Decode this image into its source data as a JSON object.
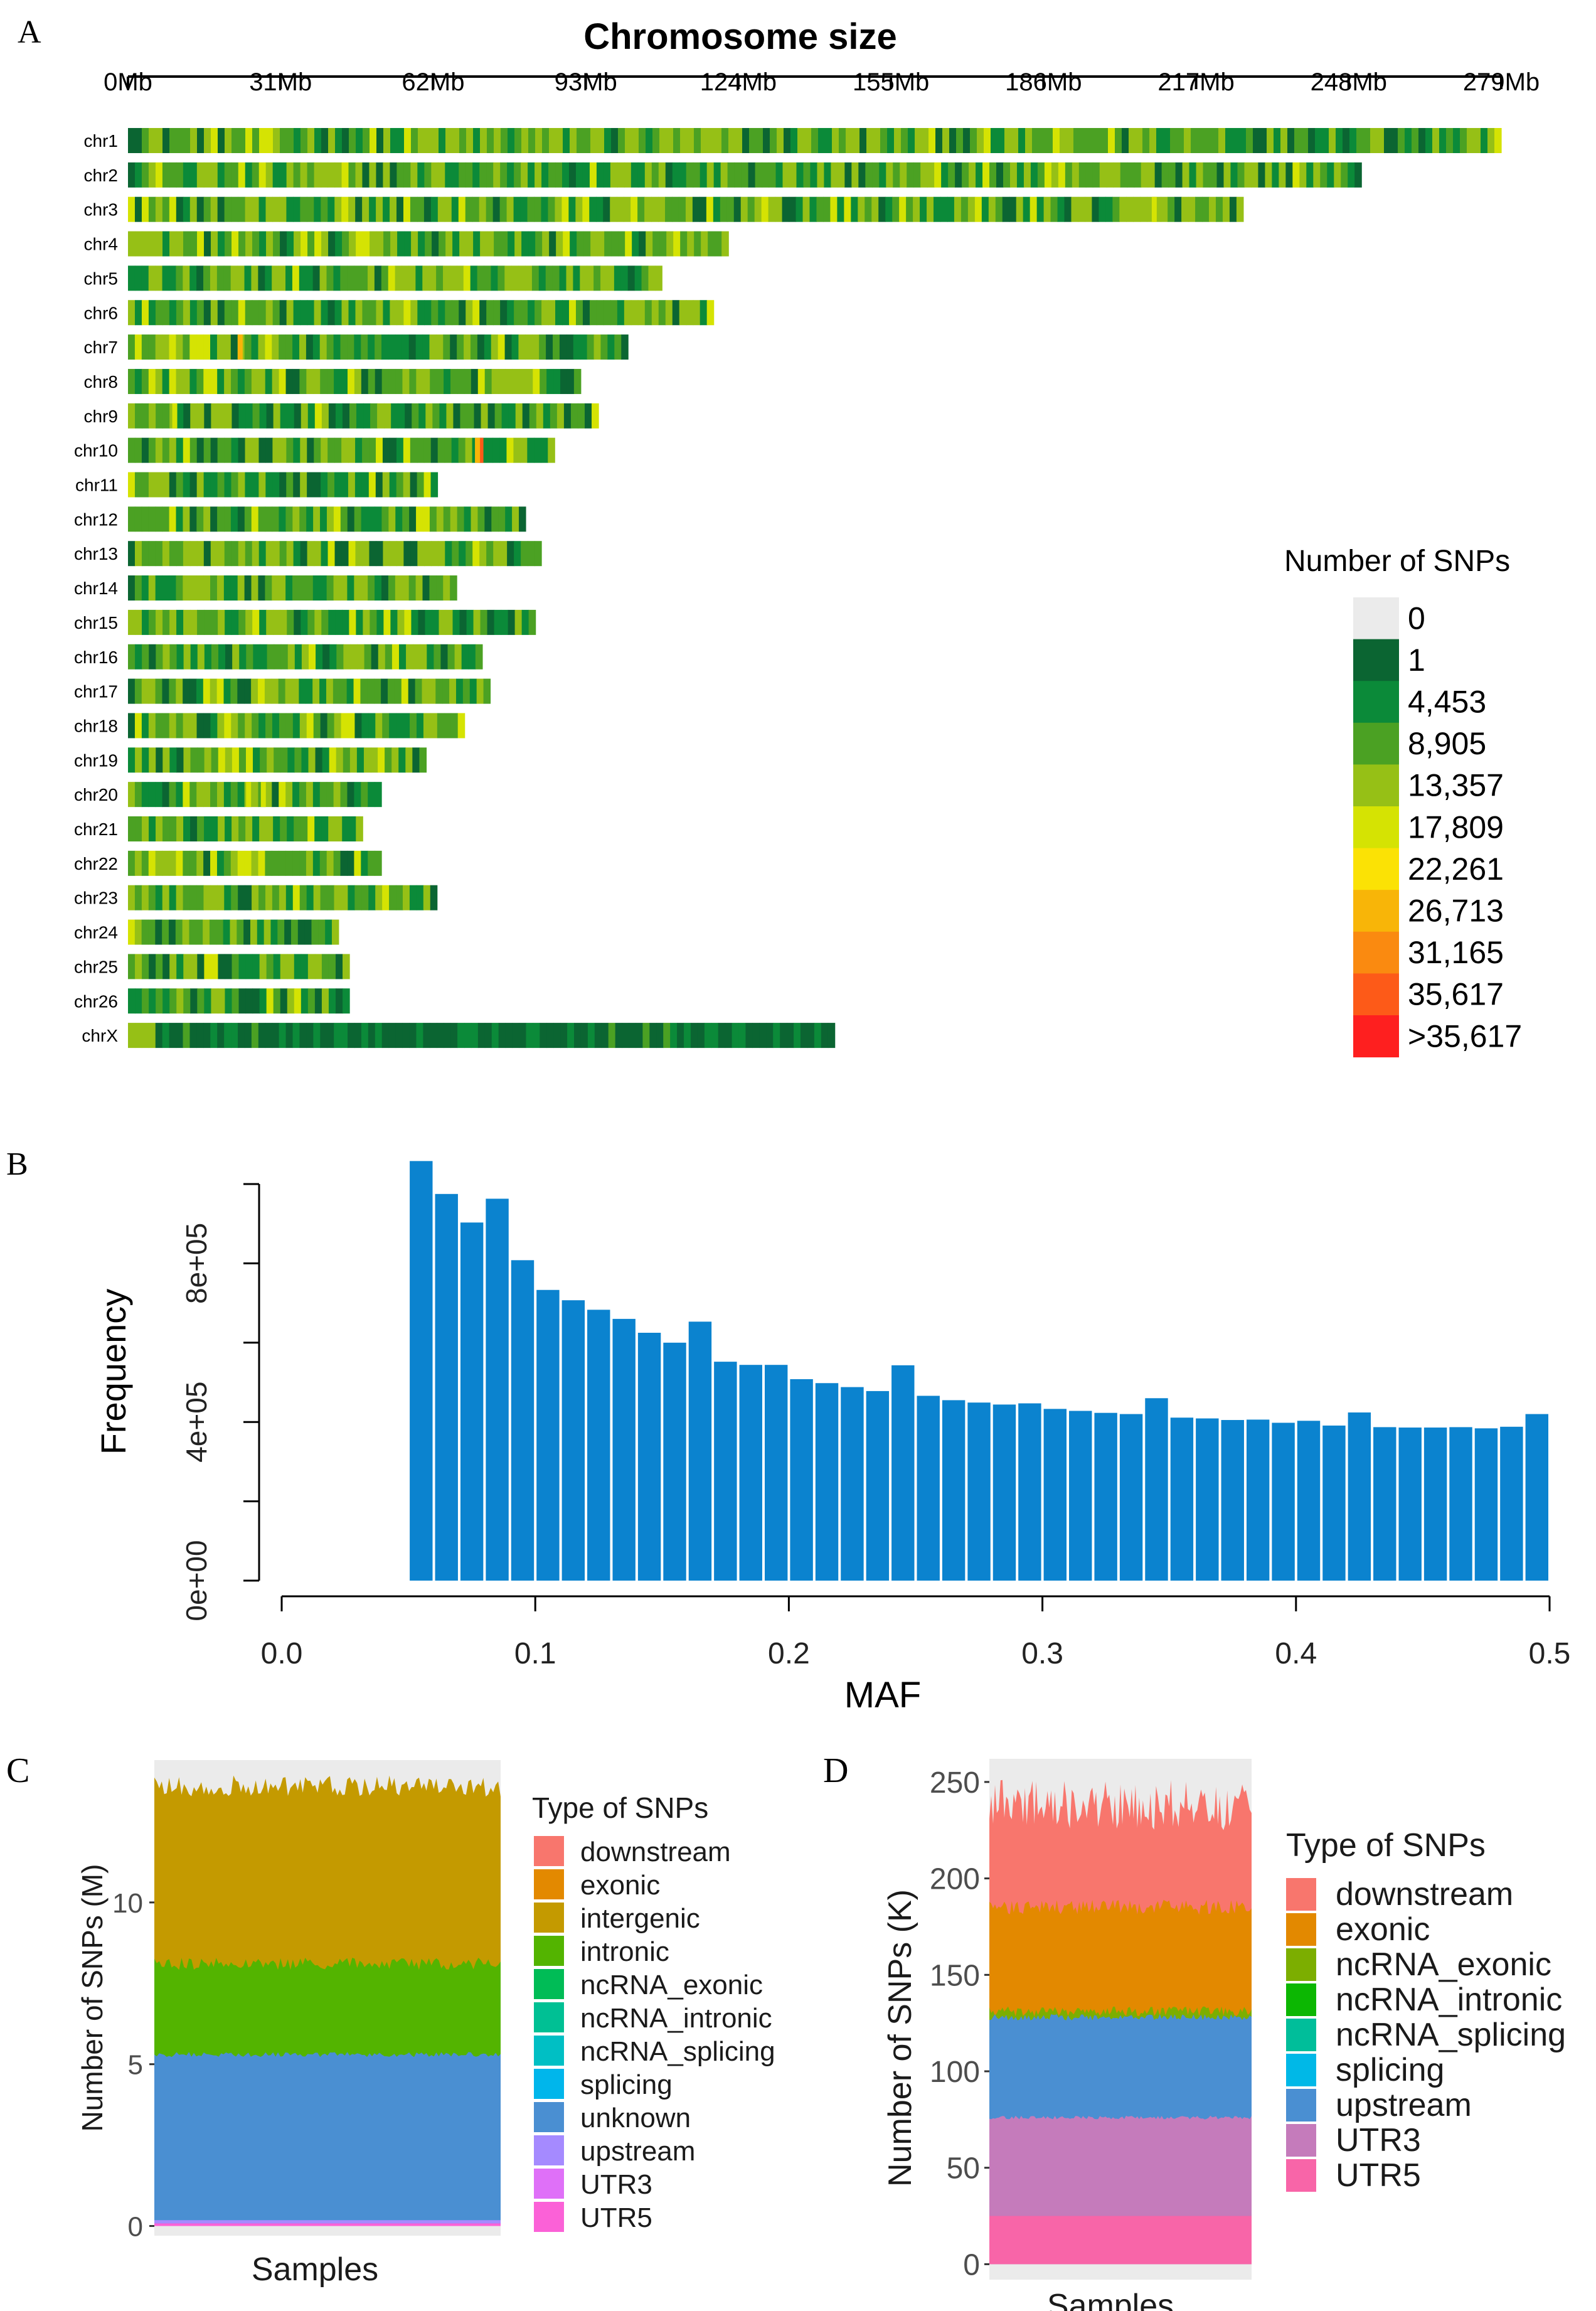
{
  "panels": {
    "a": "A",
    "b": "B",
    "c": "C",
    "d": "D"
  },
  "colors": {
    "heat": [
      "#ebebeb",
      "#0b6532",
      "#0b8a39",
      "#4ba123",
      "#96c016",
      "#d5e303",
      "#fbe205",
      "#f8b508",
      "#fa8a10",
      "#fd5a18",
      "#fe1f1f"
    ],
    "maf_bar": "#0b83cf",
    "panel_bg": "#ebebeb",
    "snp_types": {
      "downstream": "#f8766d",
      "exonic": "#e38900",
      "intergenic": "#c49a00",
      "intronic": "#53b400",
      "ncRNA_exonic": "#00bc56",
      "ncRNA_intronic": "#00c094",
      "ncRNA_splicing": "#00bfc4",
      "splicing": "#00b6eb",
      "unknown": "#4a8fd2",
      "upstream": "#a58aff",
      "UTR3": "#df70f8",
      "UTR5": "#fb61d7",
      "d_ncRNA_exonic": "#7cae00",
      "d_ncRNA_intronic": "#0cb702",
      "d_ncRNA_splicing": "#00be9a",
      "d_splicing": "#00b8e7",
      "d_upstream": "#4a8fd2",
      "d_UTR3": "#c57bbb",
      "d_UTR5": "#f865a8"
    }
  },
  "chart_data": [
    {
      "id": "chromosome-size",
      "type": "heatmap",
      "title": "Chromosome size",
      "x_unit": "Mb",
      "xlim": [
        0,
        279
      ],
      "x_ticks": [
        "0Mb",
        "31Mb",
        "62Mb",
        "93Mb",
        "124Mb",
        "155Mb",
        "186Mb",
        "217Mb",
        "248Mb",
        "279Mb"
      ],
      "chromosomes": [
        "chr1",
        "chr2",
        "chr3",
        "chr4",
        "chr5",
        "chr6",
        "chr7",
        "chr8",
        "chr9",
        "chr10",
        "chr11",
        "chr12",
        "chr13",
        "chr14",
        "chr15",
        "chr16",
        "chr17",
        "chr18",
        "chr19",
        "chr20",
        "chr21",
        "chr22",
        "chr23",
        "chr24",
        "chr25",
        "chr26",
        "chrX"
      ],
      "lengths_mb": [
        279.0,
        250.6,
        226.6,
        122.0,
        108.5,
        119.0,
        101.6,
        92.0,
        95.6,
        86.7,
        62.9,
        80.8,
        84.0,
        66.8,
        82.8,
        72.0,
        73.6,
        68.4,
        60.6,
        51.5,
        47.7,
        51.5,
        62.8,
        42.8,
        45.0,
        45.0,
        143.6
      ],
      "legend": {
        "title": "Number of SNPs",
        "labels": [
          "0",
          "1",
          "4,453",
          "8,905",
          "13,357",
          "17,809",
          "22,261",
          "26,713",
          "31,165",
          "35,617",
          ">35,617"
        ]
      },
      "hotspots": [
        {
          "chrom": "chr3",
          "pos_mb": 208.5,
          "level": 5
        },
        {
          "chrom": "chr7",
          "pos_mb": 22.8,
          "level": 7
        },
        {
          "chrom": "chr10",
          "pos_mb": 71.7,
          "level": 9
        },
        {
          "chrom": "chr10",
          "pos_mb": 71.0,
          "level": 7
        },
        {
          "chrom": "chr20",
          "pos_mb": 24.5,
          "level": 5
        },
        {
          "chrom": "chr20",
          "pos_mb": 27.5,
          "level": 5
        },
        {
          "chrom": "chr9",
          "pos_mb": 9.5,
          "level": 5
        }
      ]
    },
    {
      "id": "maf-histogram",
      "type": "bar",
      "xlabel": "MAF",
      "ylabel": "Frequency",
      "xlim": [
        0.0,
        0.5
      ],
      "ylim": [
        0,
        1000000
      ],
      "x_ticks": [
        "0.0",
        "0.1",
        "0.2",
        "0.3",
        "0.4",
        "0.5"
      ],
      "y_ticks": [
        "0e+00",
        "4e+05",
        "8e+05"
      ],
      "bin_width": 0.01,
      "bin_starts": [
        0.05,
        0.06,
        0.07,
        0.08,
        0.09,
        0.1,
        0.11,
        0.12,
        0.13,
        0.14,
        0.15,
        0.16,
        0.17,
        0.18,
        0.19,
        0.2,
        0.21,
        0.22,
        0.23,
        0.24,
        0.25,
        0.26,
        0.27,
        0.28,
        0.29,
        0.3,
        0.31,
        0.32,
        0.33,
        0.34,
        0.35,
        0.36,
        0.37,
        0.38,
        0.39,
        0.4,
        0.41,
        0.42,
        0.43,
        0.44,
        0.45,
        0.46,
        0.47,
        0.48,
        0.49
      ],
      "values": [
        1058000,
        975000,
        903000,
        963000,
        808000,
        733000,
        707000,
        683000,
        660000,
        625000,
        600000,
        653000,
        552000,
        544000,
        544000,
        508000,
        498000,
        488000,
        478000,
        543000,
        466000,
        455000,
        449000,
        444000,
        447000,
        433000,
        428000,
        423000,
        420000,
        460000,
        411000,
        409000,
        405000,
        406000,
        398000,
        403000,
        391000,
        424000,
        387000,
        386000,
        386000,
        387000,
        384000,
        388000,
        420000
      ]
    },
    {
      "id": "snp-types-m",
      "type": "area",
      "xlabel": "Samples",
      "ylabel": "Number of SNPs (M)",
      "ylim": [
        -0.3,
        14.4
      ],
      "y_ticks": [
        "0",
        "5",
        "10"
      ],
      "legend_title": "Type of SNPs",
      "series": [
        {
          "name": "downstream",
          "values": [
            0.05
          ]
        },
        {
          "name": "exonic",
          "values": [
            0.07
          ]
        },
        {
          "name": "intergenic",
          "values": [
            5.5
          ]
        },
        {
          "name": "intronic",
          "values": [
            2.8
          ]
        },
        {
          "name": "ncRNA_exonic",
          "values": [
            0.01
          ]
        },
        {
          "name": "ncRNA_intronic",
          "values": [
            0.01
          ]
        },
        {
          "name": "ncRNA_splicing",
          "values": [
            0.001
          ]
        },
        {
          "name": "splicing",
          "values": [
            0.001
          ]
        },
        {
          "name": "unknown",
          "values": [
            5.2
          ]
        },
        {
          "name": "upstream",
          "values": [
            0.04
          ]
        },
        {
          "name": "UTR3",
          "values": [
            0.06
          ]
        },
        {
          "name": "UTR5",
          "values": [
            0.02
          ]
        }
      ],
      "stack_boundaries": {
        "unknown_top": 5.3,
        "intronic_top": 8.1,
        "total_approx": 13.6
      }
    },
    {
      "id": "snp-types-k",
      "type": "area",
      "xlabel": "Samples",
      "ylabel": "Number of SNPs (K)",
      "ylim": [
        -8,
        262
      ],
      "y_ticks": [
        "0",
        "50",
        "100",
        "150",
        "200",
        "250"
      ],
      "legend_title": "Type of SNPs",
      "series": [
        {
          "name": "downstream",
          "values": [
            50
          ]
        },
        {
          "name": "exonic",
          "values": [
            55
          ]
        },
        {
          "name": "ncRNA_exonic",
          "values": [
            2
          ]
        },
        {
          "name": "ncRNA_intronic",
          "values": [
            1
          ]
        },
        {
          "name": "ncRNA_splicing",
          "values": [
            0.5
          ]
        },
        {
          "name": "splicing",
          "values": [
            0.5
          ]
        },
        {
          "name": "upstream",
          "values": [
            52
          ]
        },
        {
          "name": "UTR3",
          "values": [
            51
          ]
        },
        {
          "name": "UTR5",
          "values": [
            25
          ]
        }
      ],
      "stack_boundaries": {
        "utr5_top": 25,
        "utr3_top": 76,
        "upstream_top": 128,
        "exonic_top": 185,
        "total_approx": 238
      }
    }
  ]
}
